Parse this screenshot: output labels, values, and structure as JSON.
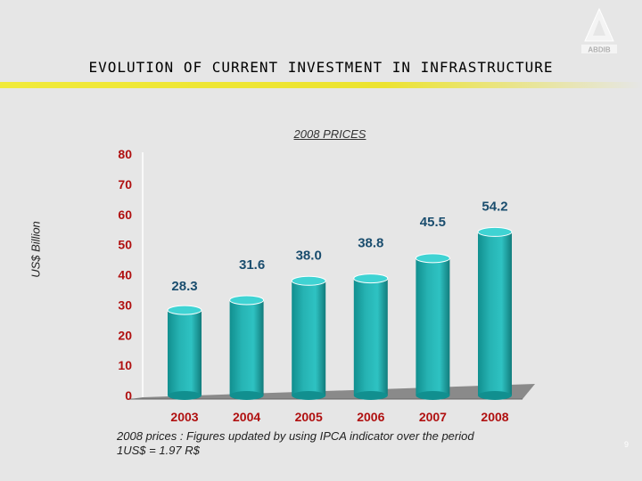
{
  "header": {
    "title": "EVOLUTION OF CURRENT INVESTMENT IN INFRASTRUCTURE",
    "logo_text": "ABDIB"
  },
  "chart_data": {
    "type": "bar",
    "subtitle": "2008 PRICES",
    "ylabel": "US$ Billion",
    "categories": [
      "2003",
      "2004",
      "2005",
      "2006",
      "2007",
      "2008"
    ],
    "values": [
      28.3,
      31.6,
      38.0,
      38.8,
      45.5,
      54.2
    ],
    "value_labels": [
      "28.3",
      "31.6",
      "38.0",
      "38.8",
      "45.5",
      "54.2"
    ],
    "ylim": [
      0,
      80
    ],
    "yticks": [
      0,
      10,
      20,
      30,
      40,
      50,
      60,
      70,
      80
    ]
  },
  "footer": {
    "note_line1": "2008 prices : Figures updated by using IPCA indicator over the period",
    "note_line2": "1US$ = 1.97 R$",
    "page_number": "9"
  },
  "colors": {
    "bar_fill": "#26b3b3",
    "bar_top": "#3fd3d3",
    "axis_label": "#b01010",
    "floor": "#8a8a8a",
    "accent_bar": "#f1ea3a"
  }
}
